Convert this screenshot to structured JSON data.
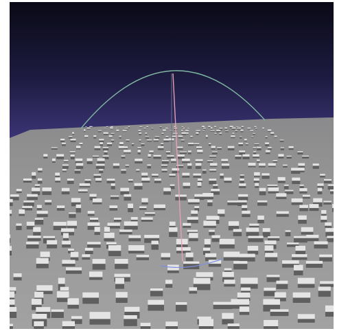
{
  "scene": {
    "sky_top_color": "#0b0b18",
    "sky_horizon_color": "#3a3470",
    "ground_color": "#9a9a9a",
    "ground_far_color": "#8e8e90",
    "building_top_color": "#e4e4e4",
    "building_side_color": "#5f5f5f",
    "arc_color": "#7fb8a0",
    "vertical_axis_color": "#e8a0b0",
    "base_axis_color": "#7a8ad8",
    "icons": [
      "orientation-gizmo-icon"
    ]
  }
}
